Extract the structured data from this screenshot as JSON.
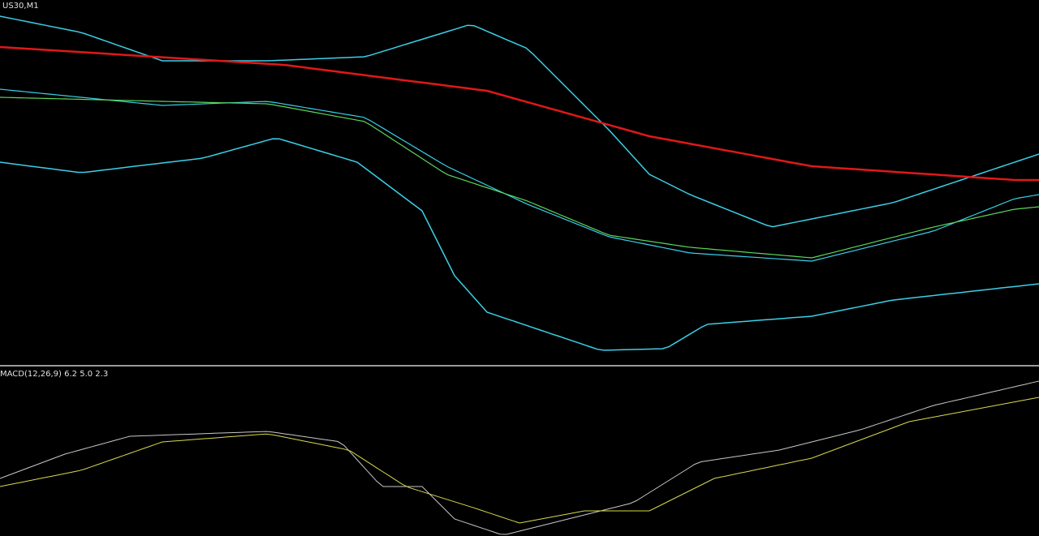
{
  "window": {
    "symbol_label": "US30,M1"
  },
  "indicator": {
    "label": "MACD(12,26,9) 6.2 5.0 2.3"
  }
}
